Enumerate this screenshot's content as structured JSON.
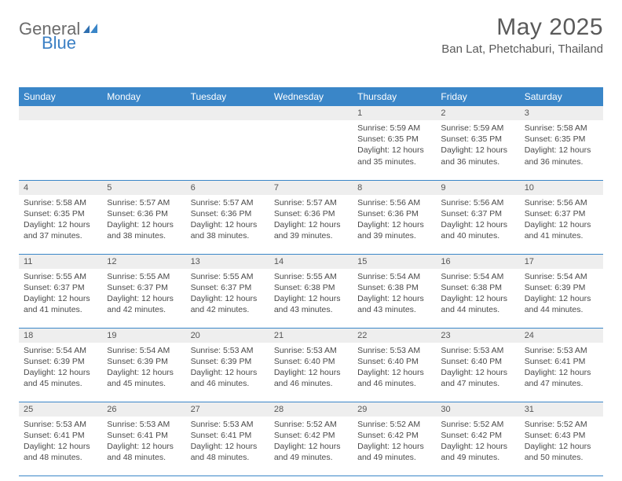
{
  "header": {
    "logo_general": "General",
    "logo_blue": "Blue",
    "month_title": "May 2025",
    "location": "Ban Lat, Phetchaburi, Thailand"
  },
  "styling": {
    "header_bg": "#3a86c8",
    "header_text": "#ffffff",
    "daynum_bg": "#eeeeee",
    "body_text": "#4a4a4a",
    "page_bg": "#ffffff",
    "border_color": "#3a86c8",
    "logo_general_color": "#6b6b6b",
    "logo_blue_color": "#3a7fc4",
    "title_color": "#5a5a5a",
    "month_fontsize": 30,
    "location_fontsize": 15,
    "day_header_fontsize": 12,
    "daynum_fontsize": 11,
    "body_fontsize": 10.5
  },
  "day_headers": [
    "Sunday",
    "Monday",
    "Tuesday",
    "Wednesday",
    "Thursday",
    "Friday",
    "Saturday"
  ],
  "weeks": [
    [
      {
        "empty": true
      },
      {
        "empty": true
      },
      {
        "empty": true
      },
      {
        "empty": true
      },
      {
        "num": "1",
        "sunrise": "Sunrise: 5:59 AM",
        "sunset": "Sunset: 6:35 PM",
        "daylight": "Daylight: 12 hours and 35 minutes."
      },
      {
        "num": "2",
        "sunrise": "Sunrise: 5:59 AM",
        "sunset": "Sunset: 6:35 PM",
        "daylight": "Daylight: 12 hours and 36 minutes."
      },
      {
        "num": "3",
        "sunrise": "Sunrise: 5:58 AM",
        "sunset": "Sunset: 6:35 PM",
        "daylight": "Daylight: 12 hours and 36 minutes."
      }
    ],
    [
      {
        "num": "4",
        "sunrise": "Sunrise: 5:58 AM",
        "sunset": "Sunset: 6:35 PM",
        "daylight": "Daylight: 12 hours and 37 minutes."
      },
      {
        "num": "5",
        "sunrise": "Sunrise: 5:57 AM",
        "sunset": "Sunset: 6:36 PM",
        "daylight": "Daylight: 12 hours and 38 minutes."
      },
      {
        "num": "6",
        "sunrise": "Sunrise: 5:57 AM",
        "sunset": "Sunset: 6:36 PM",
        "daylight": "Daylight: 12 hours and 38 minutes."
      },
      {
        "num": "7",
        "sunrise": "Sunrise: 5:57 AM",
        "sunset": "Sunset: 6:36 PM",
        "daylight": "Daylight: 12 hours and 39 minutes."
      },
      {
        "num": "8",
        "sunrise": "Sunrise: 5:56 AM",
        "sunset": "Sunset: 6:36 PM",
        "daylight": "Daylight: 12 hours and 39 minutes."
      },
      {
        "num": "9",
        "sunrise": "Sunrise: 5:56 AM",
        "sunset": "Sunset: 6:37 PM",
        "daylight": "Daylight: 12 hours and 40 minutes."
      },
      {
        "num": "10",
        "sunrise": "Sunrise: 5:56 AM",
        "sunset": "Sunset: 6:37 PM",
        "daylight": "Daylight: 12 hours and 41 minutes."
      }
    ],
    [
      {
        "num": "11",
        "sunrise": "Sunrise: 5:55 AM",
        "sunset": "Sunset: 6:37 PM",
        "daylight": "Daylight: 12 hours and 41 minutes."
      },
      {
        "num": "12",
        "sunrise": "Sunrise: 5:55 AM",
        "sunset": "Sunset: 6:37 PM",
        "daylight": "Daylight: 12 hours and 42 minutes."
      },
      {
        "num": "13",
        "sunrise": "Sunrise: 5:55 AM",
        "sunset": "Sunset: 6:37 PM",
        "daylight": "Daylight: 12 hours and 42 minutes."
      },
      {
        "num": "14",
        "sunrise": "Sunrise: 5:55 AM",
        "sunset": "Sunset: 6:38 PM",
        "daylight": "Daylight: 12 hours and 43 minutes."
      },
      {
        "num": "15",
        "sunrise": "Sunrise: 5:54 AM",
        "sunset": "Sunset: 6:38 PM",
        "daylight": "Daylight: 12 hours and 43 minutes."
      },
      {
        "num": "16",
        "sunrise": "Sunrise: 5:54 AM",
        "sunset": "Sunset: 6:38 PM",
        "daylight": "Daylight: 12 hours and 44 minutes."
      },
      {
        "num": "17",
        "sunrise": "Sunrise: 5:54 AM",
        "sunset": "Sunset: 6:39 PM",
        "daylight": "Daylight: 12 hours and 44 minutes."
      }
    ],
    [
      {
        "num": "18",
        "sunrise": "Sunrise: 5:54 AM",
        "sunset": "Sunset: 6:39 PM",
        "daylight": "Daylight: 12 hours and 45 minutes."
      },
      {
        "num": "19",
        "sunrise": "Sunrise: 5:54 AM",
        "sunset": "Sunset: 6:39 PM",
        "daylight": "Daylight: 12 hours and 45 minutes."
      },
      {
        "num": "20",
        "sunrise": "Sunrise: 5:53 AM",
        "sunset": "Sunset: 6:39 PM",
        "daylight": "Daylight: 12 hours and 46 minutes."
      },
      {
        "num": "21",
        "sunrise": "Sunrise: 5:53 AM",
        "sunset": "Sunset: 6:40 PM",
        "daylight": "Daylight: 12 hours and 46 minutes."
      },
      {
        "num": "22",
        "sunrise": "Sunrise: 5:53 AM",
        "sunset": "Sunset: 6:40 PM",
        "daylight": "Daylight: 12 hours and 46 minutes."
      },
      {
        "num": "23",
        "sunrise": "Sunrise: 5:53 AM",
        "sunset": "Sunset: 6:40 PM",
        "daylight": "Daylight: 12 hours and 47 minutes."
      },
      {
        "num": "24",
        "sunrise": "Sunrise: 5:53 AM",
        "sunset": "Sunset: 6:41 PM",
        "daylight": "Daylight: 12 hours and 47 minutes."
      }
    ],
    [
      {
        "num": "25",
        "sunrise": "Sunrise: 5:53 AM",
        "sunset": "Sunset: 6:41 PM",
        "daylight": "Daylight: 12 hours and 48 minutes."
      },
      {
        "num": "26",
        "sunrise": "Sunrise: 5:53 AM",
        "sunset": "Sunset: 6:41 PM",
        "daylight": "Daylight: 12 hours and 48 minutes."
      },
      {
        "num": "27",
        "sunrise": "Sunrise: 5:53 AM",
        "sunset": "Sunset: 6:41 PM",
        "daylight": "Daylight: 12 hours and 48 minutes."
      },
      {
        "num": "28",
        "sunrise": "Sunrise: 5:52 AM",
        "sunset": "Sunset: 6:42 PM",
        "daylight": "Daylight: 12 hours and 49 minutes."
      },
      {
        "num": "29",
        "sunrise": "Sunrise: 5:52 AM",
        "sunset": "Sunset: 6:42 PM",
        "daylight": "Daylight: 12 hours and 49 minutes."
      },
      {
        "num": "30",
        "sunrise": "Sunrise: 5:52 AM",
        "sunset": "Sunset: 6:42 PM",
        "daylight": "Daylight: 12 hours and 49 minutes."
      },
      {
        "num": "31",
        "sunrise": "Sunrise: 5:52 AM",
        "sunset": "Sunset: 6:43 PM",
        "daylight": "Daylight: 12 hours and 50 minutes."
      }
    ]
  ]
}
